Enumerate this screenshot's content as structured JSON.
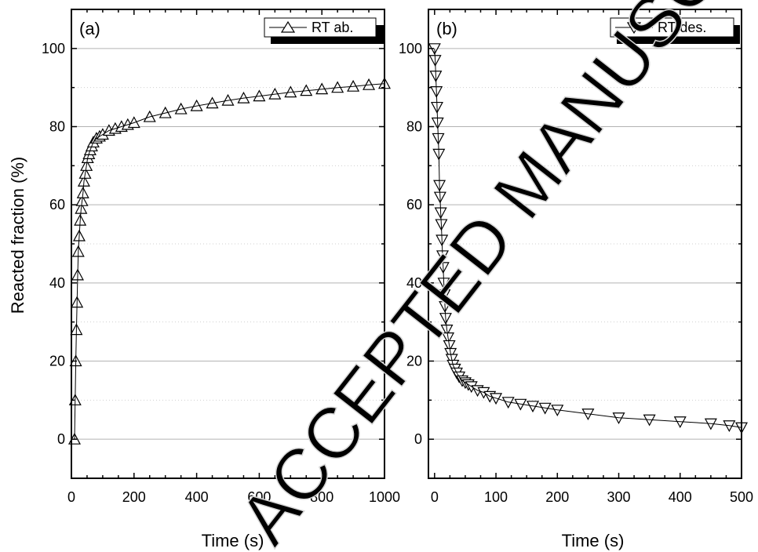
{
  "figure": {
    "ylabel": "Reacted fraction (%)",
    "watermark": "ACCEPTED MANUSCRIPT"
  },
  "chart_data": [
    {
      "type": "scatter",
      "panel_label": "(a)",
      "xlabel": "Time (s)",
      "ylabel": "Reacted fraction (%)",
      "xlim": [
        0,
        1000
      ],
      "ylim": [
        -10,
        110
      ],
      "xticks": [
        0,
        200,
        400,
        600,
        800,
        1000
      ],
      "yticks": [
        0,
        20,
        40,
        60,
        80,
        100
      ],
      "grid": "horizontal",
      "legend_position": "top-right",
      "marker": "triangle-up",
      "series": [
        {
          "name": "RT ab.",
          "x": [
            10,
            12,
            14,
            16,
            18,
            20,
            22,
            25,
            28,
            31,
            34,
            37,
            40,
            44,
            48,
            52,
            56,
            60,
            65,
            70,
            80,
            90,
            100,
            120,
            140,
            160,
            180,
            200,
            250,
            300,
            350,
            400,
            450,
            500,
            550,
            600,
            650,
            700,
            750,
            800,
            850,
            900,
            950,
            1000
          ],
          "y": [
            0,
            10,
            20,
            28,
            35,
            42,
            48,
            52,
            56,
            59,
            61,
            63,
            66,
            68,
            70,
            72,
            73,
            74,
            75,
            76,
            77,
            77.5,
            78,
            79,
            79.5,
            80,
            80.5,
            81,
            82.5,
            83.5,
            84.5,
            85.3,
            86,
            86.7,
            87.3,
            87.8,
            88.3,
            88.8,
            89.2,
            89.6,
            90,
            90.3,
            90.7,
            91
          ]
        }
      ]
    },
    {
      "type": "scatter",
      "panel_label": "(b)",
      "xlabel": "Time (s)",
      "ylabel": "",
      "xlim": [
        -10,
        500
      ],
      "ylim": [
        -10,
        110
      ],
      "xticks": [
        0,
        100,
        200,
        300,
        400,
        500
      ],
      "yticks": [
        0,
        20,
        40,
        60,
        80,
        100
      ],
      "grid": "horizontal",
      "legend_position": "top-right",
      "marker": "triangle-down",
      "series": [
        {
          "name": "RT des.",
          "x": [
            0,
            1,
            2,
            3,
            4,
            5,
            6,
            7,
            8,
            9,
            10,
            11,
            12,
            13,
            14,
            15,
            16,
            17,
            18,
            20,
            22,
            24,
            26,
            28,
            30,
            33,
            36,
            40,
            45,
            50,
            55,
            60,
            70,
            80,
            90,
            100,
            120,
            140,
            160,
            180,
            200,
            250,
            300,
            350,
            400,
            450,
            480,
            500
          ],
          "y": [
            100,
            97,
            93,
            89,
            85,
            81,
            77,
            73,
            65,
            62,
            58,
            55,
            51,
            47,
            44,
            40,
            37,
            34,
            31,
            28,
            26,
            24,
            22,
            20.5,
            19,
            18,
            17,
            16,
            15,
            14.5,
            14,
            13.5,
            12.5,
            12,
            11,
            10.5,
            9.5,
            9,
            8.5,
            8,
            7.5,
            6.5,
            5.5,
            5,
            4.5,
            4,
            3.5,
            3
          ]
        }
      ]
    }
  ]
}
